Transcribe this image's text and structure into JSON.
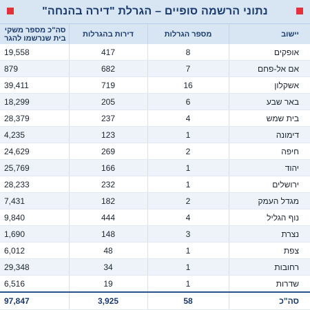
{
  "title": "נתוני הרשמה סופיים – הגרלת \"דירה בהנחה\"",
  "colors": {
    "header_bg": "#d8e6f4",
    "header_text": "#1a3a6b",
    "accent_square": "#e0333a",
    "alt_row": "#edf3f9"
  },
  "table": {
    "headers": {
      "city": "יישוב",
      "lotteries": "מספר הגרלות",
      "apartments": "דירות בהגרלות",
      "registrants_line1": "סה\"כ מספר משקי",
      "registrants_line2": "בית שנרשמו להגר"
    },
    "rows": [
      {
        "city": "אופקים",
        "lotteries": "8",
        "apartments": "417",
        "registrants": "19,558"
      },
      {
        "city": "אם אל-פחם",
        "lotteries": "7",
        "apartments": "682",
        "registrants": "879"
      },
      {
        "city": "אשקלון",
        "lotteries": "16",
        "apartments": "719",
        "registrants": "39,411"
      },
      {
        "city": "באר שבע",
        "lotteries": "6",
        "apartments": "205",
        "registrants": "18,299"
      },
      {
        "city": "בית שמש",
        "lotteries": "4",
        "apartments": "237",
        "registrants": "28,379"
      },
      {
        "city": "דימונה",
        "lotteries": "1",
        "apartments": "123",
        "registrants": "4,235"
      },
      {
        "city": "חיפה",
        "lotteries": "2",
        "apartments": "269",
        "registrants": "24,629"
      },
      {
        "city": "יהוד",
        "lotteries": "1",
        "apartments": "166",
        "registrants": "25,769"
      },
      {
        "city": "ירושלים",
        "lotteries": "1",
        "apartments": "232",
        "registrants": "28,233"
      },
      {
        "city": "מגדל העמק",
        "lotteries": "2",
        "apartments": "182",
        "registrants": "7,431"
      },
      {
        "city": "נוף הגליל",
        "lotteries": "4",
        "apartments": "444",
        "registrants": "9,840"
      },
      {
        "city": "נצרת",
        "lotteries": "3",
        "apartments": "148",
        "registrants": "1,690"
      },
      {
        "city": "צפת",
        "lotteries": "1",
        "apartments": "48",
        "registrants": "6,012"
      },
      {
        "city": "רחובות",
        "lotteries": "1",
        "apartments": "34",
        "registrants": "29,348"
      },
      {
        "city": "שדרות",
        "lotteries": "1",
        "apartments": "19",
        "registrants": "6,516"
      }
    ],
    "total": {
      "city": "סה\"כ",
      "lotteries": "58",
      "apartments": "3,925",
      "registrants": "97,847"
    }
  }
}
